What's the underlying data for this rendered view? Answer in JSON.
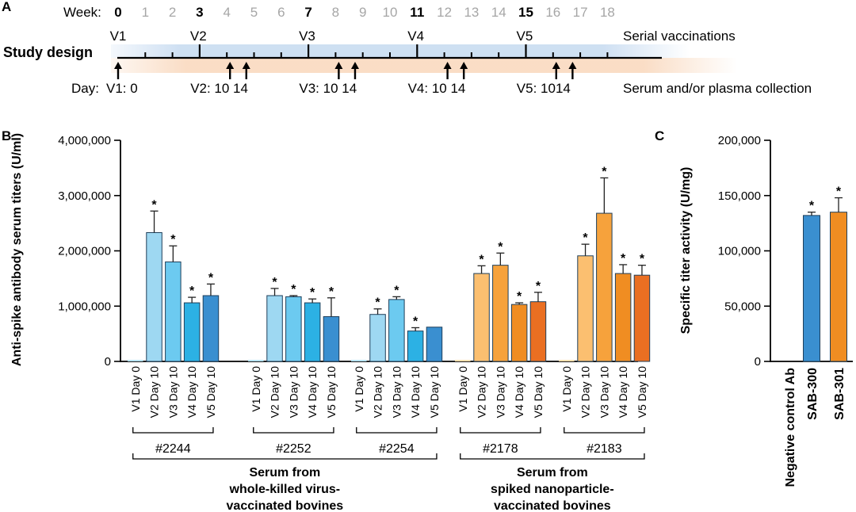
{
  "panel_a": {
    "letter": "A",
    "week_label": "Week:",
    "weeks": [
      {
        "label": "0",
        "bold": true
      },
      {
        "label": "1",
        "bold": false
      },
      {
        "label": "2",
        "bold": false
      },
      {
        "label": "3",
        "bold": true
      },
      {
        "label": "4",
        "bold": false
      },
      {
        "label": "5",
        "bold": false
      },
      {
        "label": "6",
        "bold": false
      },
      {
        "label": "7",
        "bold": true
      },
      {
        "label": "8",
        "bold": false
      },
      {
        "label": "9",
        "bold": false
      },
      {
        "label": "10",
        "bold": false
      },
      {
        "label": "11",
        "bold": true
      },
      {
        "label": "12",
        "bold": false
      },
      {
        "label": "13",
        "bold": false
      },
      {
        "label": "14",
        "bold": false
      },
      {
        "label": "15",
        "bold": true
      },
      {
        "label": "16",
        "bold": false
      },
      {
        "label": "17",
        "bold": false
      },
      {
        "label": "18",
        "bold": false
      }
    ],
    "vaccinations": [
      {
        "label": "V1",
        "week": 0
      },
      {
        "label": "V2",
        "week": 3
      },
      {
        "label": "V3",
        "week": 7
      },
      {
        "label": "V4",
        "week": 11
      },
      {
        "label": "V5",
        "week": 15
      }
    ],
    "serial_label": "Serial vaccinations",
    "study_design_label": "Study design",
    "day_label": "Day:",
    "collections": [
      {
        "label": "V1: 0",
        "arrows": [
          0
        ]
      },
      {
        "label": "V2: 10 14",
        "arrows": [
          4,
          4.6
        ]
      },
      {
        "label": "V3: 10 14",
        "arrows": [
          8,
          8.6
        ]
      },
      {
        "label": "V4: 10 14",
        "arrows": [
          12,
          12.6
        ]
      },
      {
        "label": "V5: 1014",
        "arrows": [
          16,
          16.6
        ]
      }
    ],
    "collection_label": "Serum and/or plasma collection"
  },
  "chart_data": [
    {
      "type": "bar",
      "panel": "B",
      "ylabel": "Anti-spike antibody serum titers (U/ml)",
      "ylim": [
        0,
        4000000
      ],
      "yticks": [
        "0",
        "1,000,000",
        "2,000,000",
        "3,000,000",
        "4,000,000"
      ],
      "categories": [
        "V1 Day 0",
        "V2 Day 10",
        "V3 Day 10",
        "V4 Day 10",
        "V5 Day 10"
      ],
      "groups": [
        {
          "name": "#2244",
          "family": "killed",
          "values": [
            0,
            2330000,
            1800000,
            1060000,
            1190000
          ],
          "errors": [
            0,
            390000,
            290000,
            100000,
            210000
          ],
          "sig": [
            false,
            true,
            true,
            true,
            true
          ]
        },
        {
          "name": "#2252",
          "family": "killed",
          "values": [
            0,
            1190000,
            1170000,
            1060000,
            810000
          ],
          "errors": [
            0,
            130000,
            20000,
            70000,
            340000
          ],
          "sig": [
            false,
            true,
            true,
            true,
            true
          ]
        },
        {
          "name": "#2254",
          "family": "killed",
          "values": [
            0,
            850000,
            1120000,
            550000,
            620000
          ],
          "errors": [
            0,
            100000,
            50000,
            60000,
            0
          ],
          "sig": [
            false,
            true,
            true,
            true,
            false
          ]
        },
        {
          "name": "#2178",
          "family": "nano",
          "values": [
            0,
            1590000,
            1740000,
            1030000,
            1080000
          ],
          "errors": [
            0,
            140000,
            220000,
            30000,
            170000
          ],
          "sig": [
            false,
            true,
            true,
            true,
            true
          ]
        },
        {
          "name": "#2183",
          "family": "nano",
          "values": [
            0,
            1910000,
            2680000,
            1590000,
            1560000
          ],
          "errors": [
            0,
            210000,
            640000,
            160000,
            180000
          ],
          "sig": [
            false,
            true,
            true,
            true,
            true
          ]
        }
      ],
      "family_labels": [
        {
          "key": "killed",
          "lines": [
            "Serum from",
            "whole-killed virus-",
            "vaccinated bovines"
          ]
        },
        {
          "key": "nano",
          "lines": [
            "Serum from",
            "spiked nanoparticle-",
            "vaccinated bovines"
          ]
        }
      ],
      "colors": {
        "killed": [
          "#b9e4f6",
          "#9ed8f2",
          "#6ccaf0",
          "#2cb1e4",
          "#3a8fd0"
        ],
        "nano": [
          "#fde2b1",
          "#fbbf70",
          "#f6a23c",
          "#f08d22",
          "#ea6f22"
        ]
      }
    },
    {
      "type": "bar",
      "panel": "C",
      "ylabel": "Specific titer activity (U/mg)",
      "ylim": [
        0,
        200000
      ],
      "yticks": [
        "0",
        "50,000",
        "100,000",
        "150,000",
        "200,000"
      ],
      "categories": [
        "Negative control Ab",
        "SAB-300",
        "SAB-301"
      ],
      "values": [
        0,
        132000,
        135000
      ],
      "errors": [
        0,
        3000,
        13000
      ],
      "sig": [
        false,
        true,
        true
      ],
      "colors": [
        "#3a8fd0",
        "#3a8fd0",
        "#f08d22"
      ]
    }
  ],
  "sig_mark": "*"
}
